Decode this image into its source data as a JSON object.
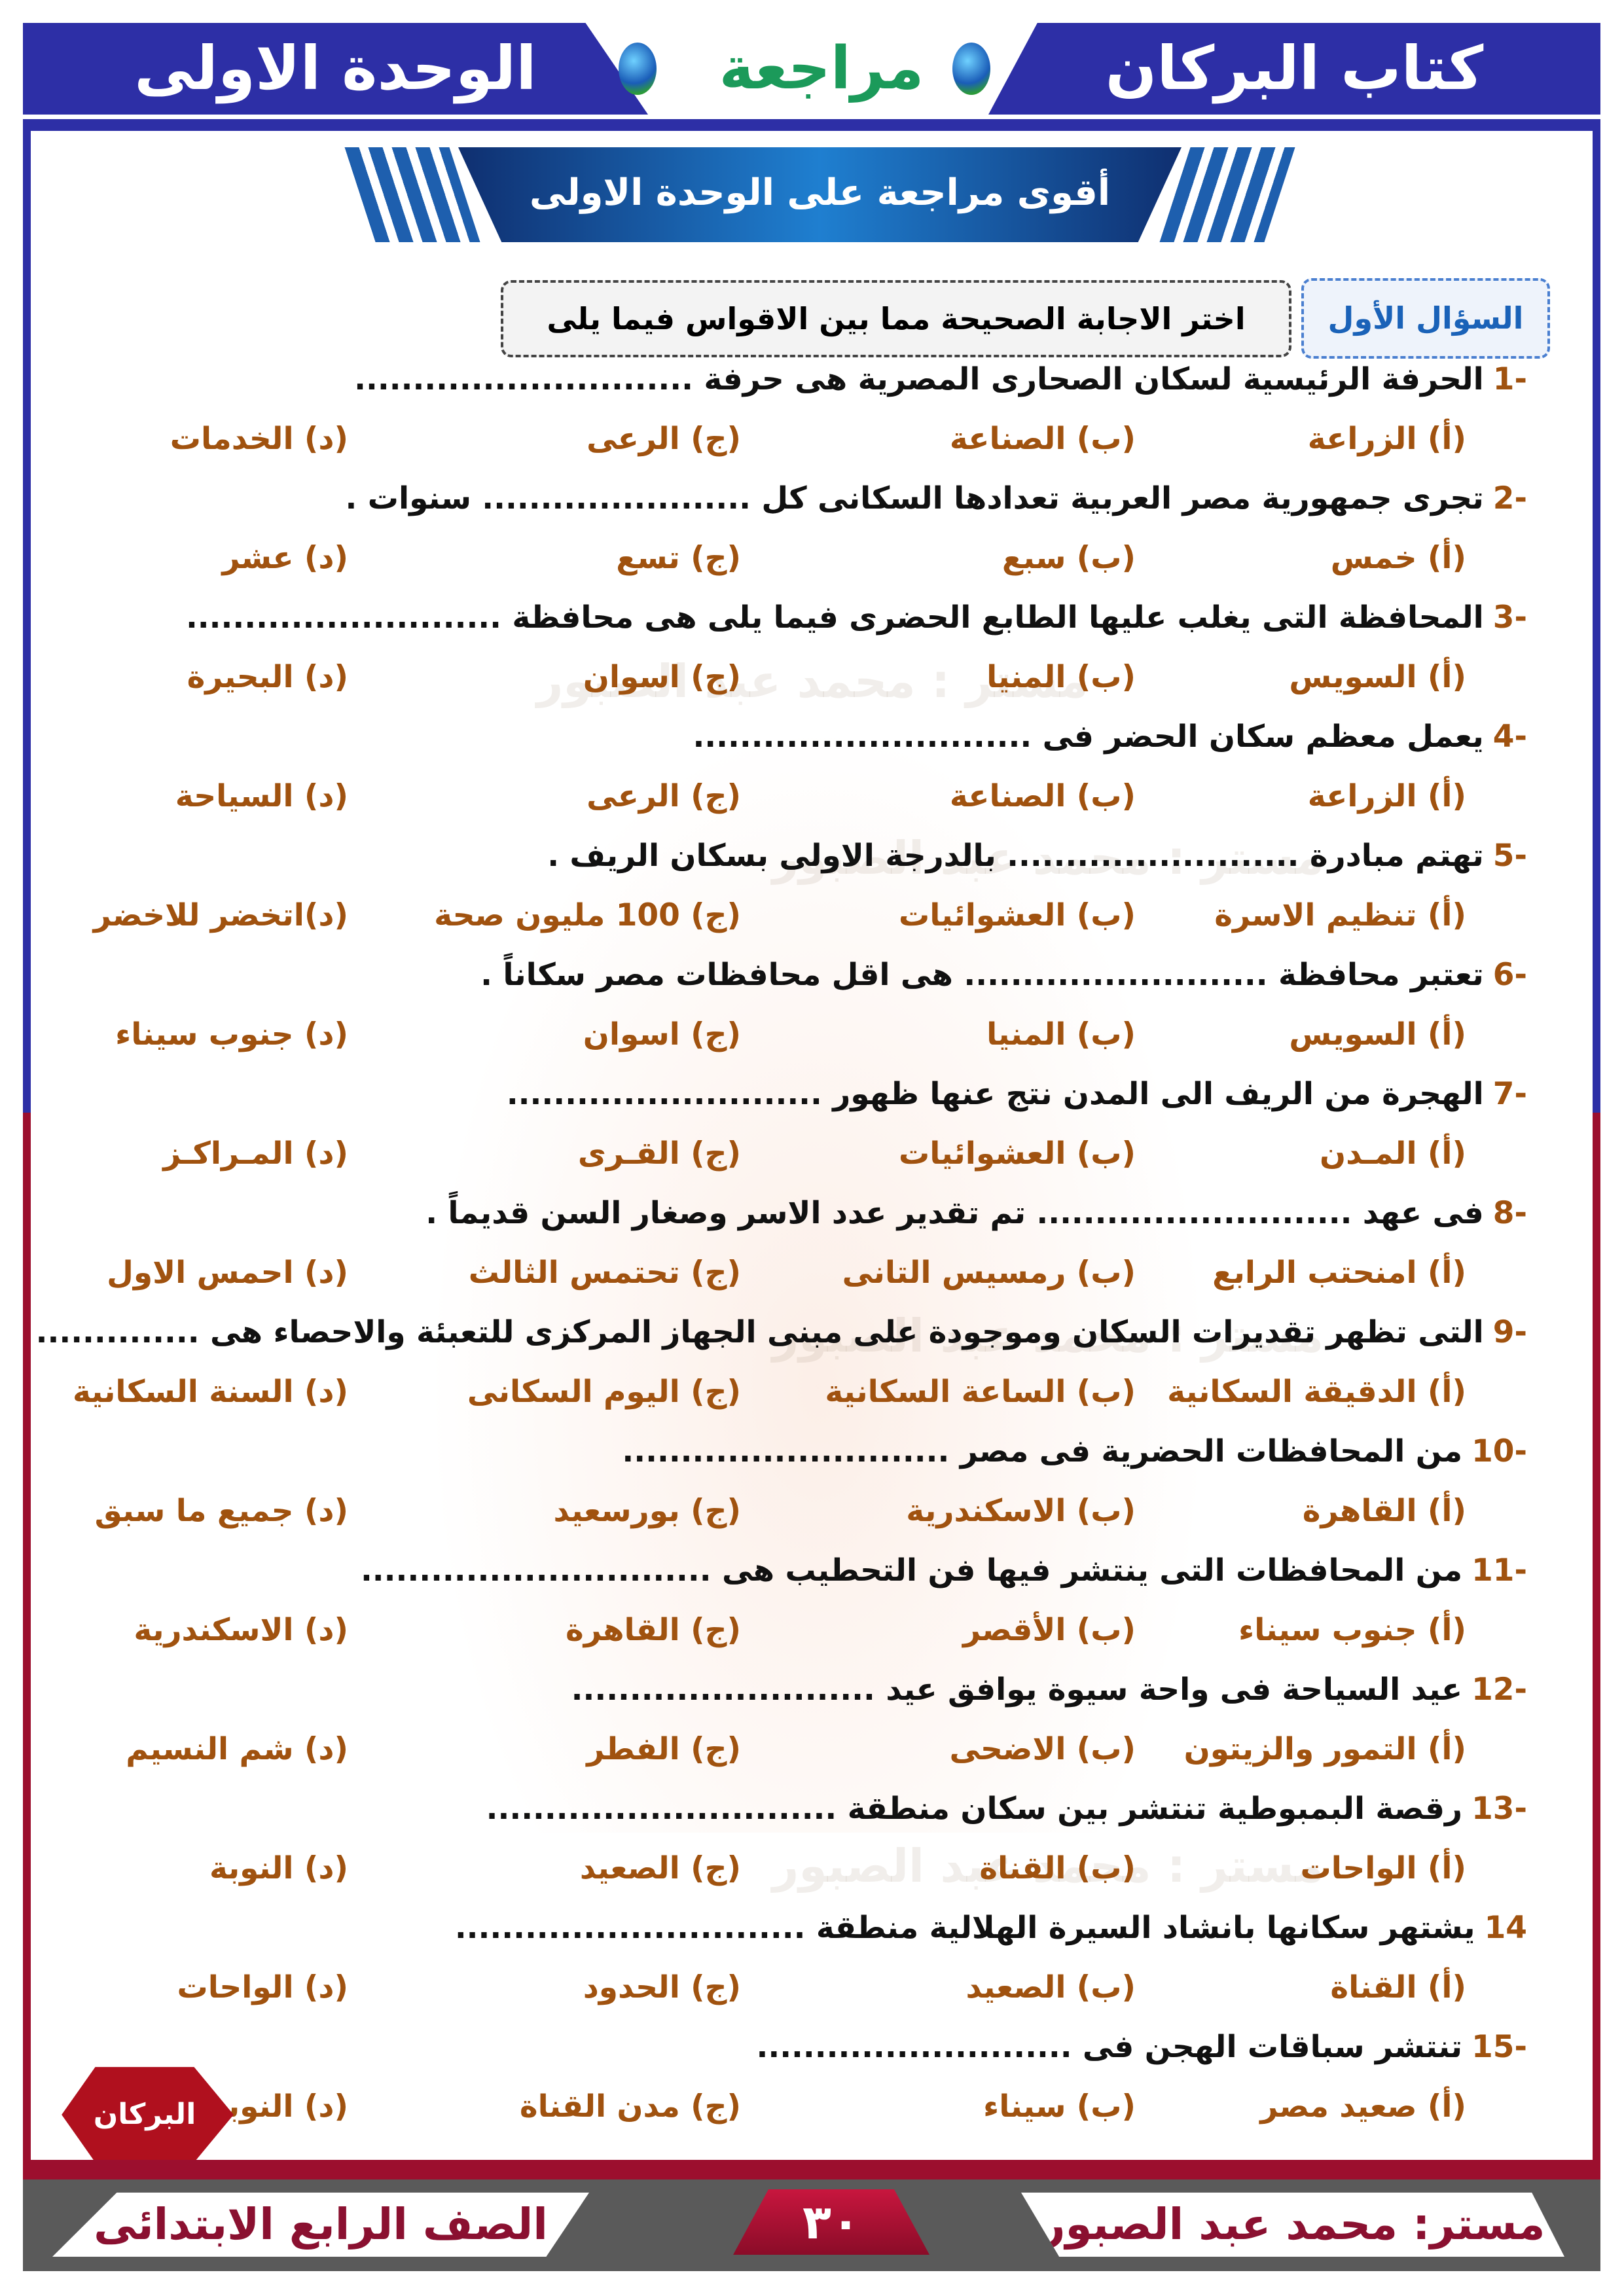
{
  "header": {
    "book_title": "كتاب البركان",
    "review_label": "مراجعة",
    "unit_title": "الوحدة الاولى"
  },
  "banner": {
    "title": "أقوى مراجعة على الوحدة الاولى"
  },
  "section": {
    "label": "السؤال الأول",
    "instruction": "اختر الاجابة الصحيحة مما بين الاقواس فيما يلى"
  },
  "watermark": "مستر : محمد عبد الصبور",
  "logo_text": "البركان",
  "colors": {
    "header_blue": "#2d2fa6",
    "option_brown": "#a0520f",
    "footer_red": "#9c0f2e",
    "footer_gray": "#5a5a5a"
  },
  "questions": [
    {
      "num": "-1",
      "text": "الحرفة الرئيسية لسكان الصحارى المصرية هى حرفة .............................",
      "options": [
        "(أ) الزراعة",
        "(ب) الصناعة",
        "(ج) الرعى",
        "(د) الخدمات"
      ]
    },
    {
      "num": "-2",
      "text": "تجرى جمهورية مصر العربية تعدادها السكانى كل ....................... سنوات .",
      "options": [
        "(أ) خمس",
        "(ب) سبع",
        "(ج) تسع",
        "(د) عشر"
      ]
    },
    {
      "num": "-3",
      "text": "المحافظة التى يغلب عليها الطابع الحضرى فيما يلى هى محافظة ...........................",
      "options": [
        "(أ) السويس",
        "(ب) المنيا",
        "(ج) اسوان",
        "(د) البحيرة"
      ]
    },
    {
      "num": "-4",
      "text": "يعمل معظم سكان الحضر فى .............................",
      "options": [
        "(أ) الزراعة",
        "(ب) الصناعة",
        "(ج) الرعى",
        "(د) السياحة"
      ]
    },
    {
      "num": "-5",
      "text": "تهتم مبادرة ......................... بالدرجة الاولى بسكان الريف .",
      "options": [
        "(أ) تنظيم الاسرة",
        "(ب) العشوائيات",
        "(ج) 100 مليون صحة",
        "(د)اتخضر للاخضر"
      ]
    },
    {
      "num": "-6",
      "text": "تعتبر محافظة .......................... هى اقل محافظات مصر سكاناً .",
      "options": [
        "(أ) السويس",
        "(ب) المنيا",
        "(ج) اسوان",
        "(د) جنوب سيناء"
      ]
    },
    {
      "num": "-7",
      "text": "الهجرة من الريف الى المدن نتج عنها ظهور ...........................",
      "options": [
        "(أ) المـدن",
        "(ب) العشوائيات",
        "(ج) القـرى",
        "(د) المـراكـز"
      ]
    },
    {
      "num": "-8",
      "text": "فى عهد ........................... تم تقدير عدد الاسر وصغار السن قديماً .",
      "options": [
        "(أ) امنحتب الرابع",
        "(ب) رمسيس التانى",
        "(ج) تحتمس الثالث",
        "(د) احمس الاول"
      ]
    },
    {
      "num": "-9",
      "text": "التى تظهر تقديرات السكان وموجودة على مبنى الجهاز المركزى للتعبئة والاحصاء هى ..............",
      "options": [
        "(أ) الدقيقة السكانية",
        "(ب) الساعة السكانية",
        "(ج) اليوم السكانى",
        "(د) السنة السكانية"
      ]
    },
    {
      "num": "-10",
      "text": "من المحافظات الحضرية فى مصر ............................",
      "options": [
        "(أ) القاهرة",
        "(ب) الاسكندرية",
        "(ج) بورسعيد",
        "(د) جميع ما سبق"
      ]
    },
    {
      "num": "-11",
      "text": "من المحافظات التى ينتشر فيها فن التحطيب هى ..............................",
      "options": [
        "(أ) جنوب سيناء",
        "(ب) الأقصر",
        "(ج) القاهرة",
        "(د) الاسكندرية"
      ]
    },
    {
      "num": "-12",
      "text": "عيد السياحة فى واحة سيوة يوافق عيد ..........................",
      "options": [
        "(أ) التمور والزيتون",
        "(ب) الاضحى",
        "(ج) الفطر",
        "(د) شم النسيم"
      ]
    },
    {
      "num": "-13",
      "text": "رقصة البمبوطية تنتشر بين سكان منطقة ..............................",
      "options": [
        "(أ) الواحات",
        "(ب) القناة",
        "(ج) الصعيد",
        "(د) النوبة"
      ]
    },
    {
      "num": "14",
      "text": "يشتهر سكانها بانشاد السيرة الهلالية منطقة ..............................",
      "options": [
        "(أ) القناة",
        "(ب) الصعيد",
        "(ج) الحدود",
        "(د) الواحات"
      ]
    },
    {
      "num": "-15",
      "text": "تنتشر سباقات الهجن فى ...........................",
      "options": [
        "(أ) صعيد مصر",
        "(ب) سيناء",
        "(ج) مدن القناة",
        "(د) النوبة"
      ]
    }
  ],
  "footer": {
    "grade": "الصف الرابع الابتدائى",
    "page_number": "٣٠",
    "teacher": "مستر: محمد عبد الصبور"
  }
}
